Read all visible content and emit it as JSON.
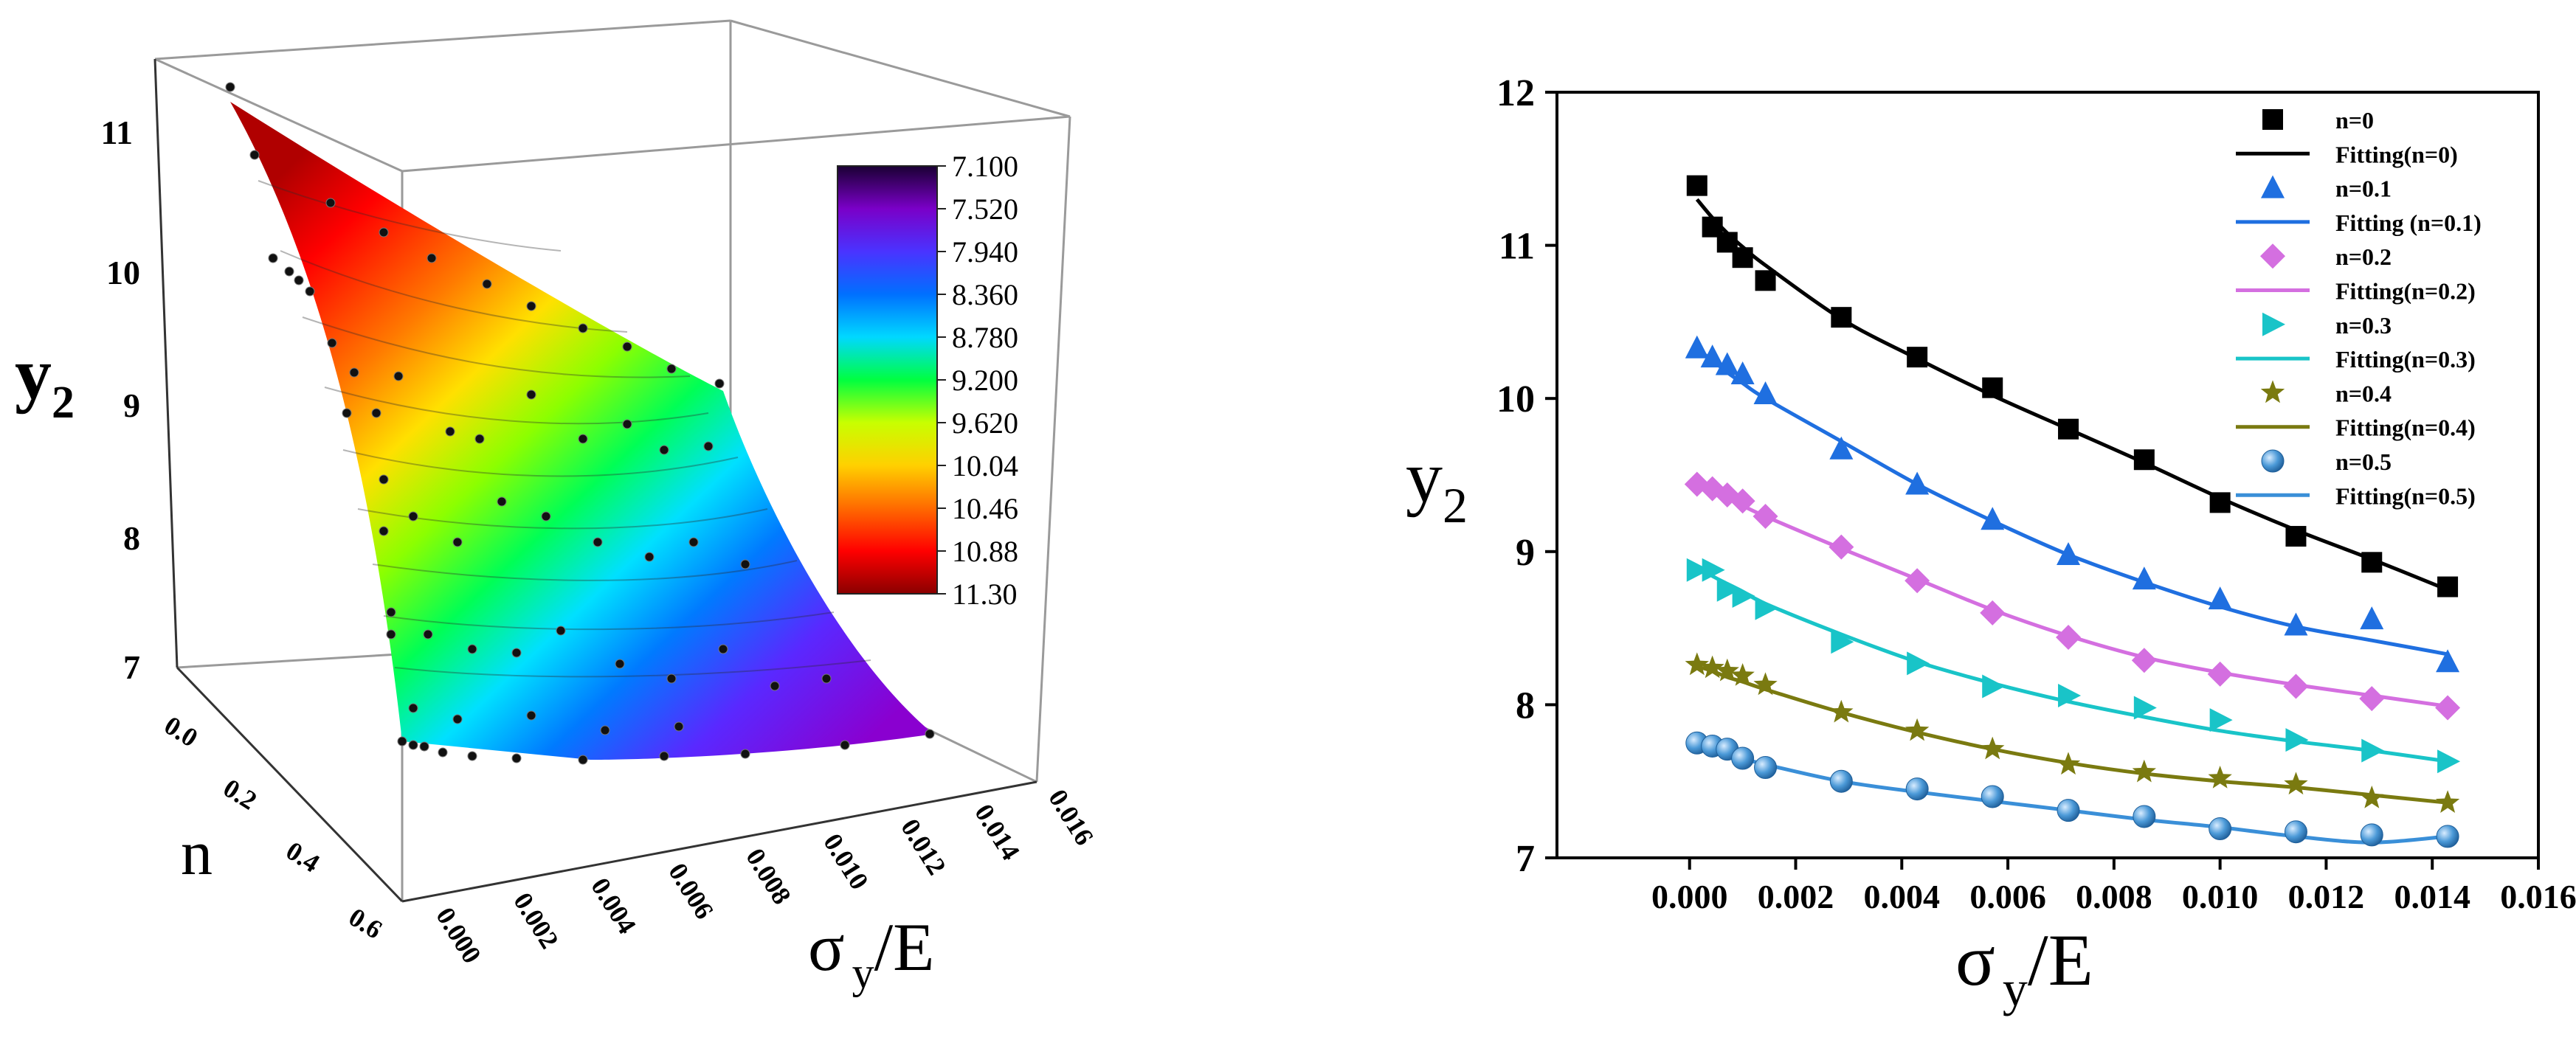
{
  "chart_data": [
    {
      "type": "surface3d",
      "zlabel": "y",
      "zlabel_sub": "2",
      "ylabel": "n",
      "xlabel_sigma": "σ",
      "xlabel_sub": "y",
      "xlabel_rest": "/E",
      "z_ticks": [
        "7",
        "8",
        "9",
        "10",
        "11"
      ],
      "n_ticks": [
        "0.0",
        "0.2",
        "0.4",
        "0.6"
      ],
      "x_ticks": [
        "0.000",
        "0.002",
        "0.004",
        "0.006",
        "0.008",
        "0.010",
        "0.012",
        "0.014",
        "0.016"
      ],
      "zlim": [
        7,
        11.5
      ],
      "nlim": [
        0,
        0.6
      ],
      "xlim": [
        0,
        0.016
      ],
      "colorbar": {
        "labels": [
          "7.100",
          "7.520",
          "7.940",
          "8.360",
          "8.780",
          "9.200",
          "9.620",
          "10.04",
          "10.46",
          "10.88",
          "11.30"
        ],
        "stops": [
          "#1a0033",
          "#7a00c8",
          "#4a33ff",
          "#0070ff",
          "#00d8ff",
          "#00ff40",
          "#c8ff00",
          "#ffd000",
          "#ff6a00",
          "#ff0000",
          "#8a0000"
        ]
      }
    },
    {
      "type": "line",
      "ylabel": "y",
      "ylabel_sub": "2",
      "xlabel_sigma": "σ",
      "xlabel_sub": "y",
      "xlabel_rest": "/E",
      "xlim": [
        -0.0025,
        0.016
      ],
      "ylim": [
        7,
        12
      ],
      "x_ticks": [
        0.0,
        0.002,
        0.004,
        0.006,
        0.008,
        0.01,
        0.012,
        0.014,
        0.016
      ],
      "x_tick_labels": [
        "0.000",
        "0.002",
        "0.004",
        "0.006",
        "0.008",
        "0.010",
        "0.012",
        "0.014",
        "0.016"
      ],
      "y_ticks": [
        7,
        8,
        9,
        10,
        11,
        12
      ],
      "y_tick_labels": [
        "7",
        "8",
        "9",
        "10",
        "11",
        "12"
      ],
      "x": [
        0.00014,
        0.00043,
        0.00071,
        0.001,
        0.00143,
        0.00286,
        0.00429,
        0.00571,
        0.00714,
        0.00857,
        0.01,
        0.01143,
        0.01286,
        0.01429
      ],
      "series": [
        {
          "name": "n=0",
          "fit_name": "Fitting(n=0)",
          "marker": "square",
          "marker_color": "#000000",
          "line_color": "#000000",
          "values": [
            11.39,
            11.12,
            11.02,
            10.92,
            10.77,
            10.53,
            10.27,
            10.07,
            9.8,
            9.6,
            9.32,
            9.1,
            8.93,
            8.77
          ],
          "fit": [
            11.3,
            11.18,
            11.08,
            10.99,
            10.87,
            10.52,
            10.26,
            10.02,
            9.8,
            9.58,
            9.35,
            9.14,
            8.95,
            8.75
          ]
        },
        {
          "name": "n=0.1",
          "fit_name": "Fitting (n=0.1)",
          "marker": "triangle-up",
          "marker_color": "#1f6fe0",
          "line_color": "#1f6fe0",
          "values": [
            10.33,
            10.27,
            10.22,
            10.16,
            10.03,
            9.67,
            9.44,
            9.21,
            8.98,
            8.82,
            8.69,
            8.52,
            8.56,
            8.28
          ],
          "fit": [
            10.32,
            10.25,
            10.17,
            10.1,
            10.0,
            9.72,
            9.44,
            9.2,
            8.98,
            8.8,
            8.64,
            8.51,
            8.42,
            8.33
          ]
        },
        {
          "name": "n=0.2",
          "fit_name": "Fitting(n=0.2)",
          "marker": "diamond",
          "marker_color": "#d46fe0",
          "line_color": "#d46fe0",
          "values": [
            9.44,
            9.41,
            9.37,
            9.33,
            9.23,
            9.03,
            8.81,
            8.6,
            8.44,
            8.29,
            8.2,
            8.12,
            8.04,
            7.98
          ],
          "fit": [
            9.45,
            9.4,
            9.35,
            9.3,
            9.23,
            9.02,
            8.82,
            8.62,
            8.45,
            8.31,
            8.21,
            8.13,
            8.06,
            7.99
          ]
        },
        {
          "name": "n=0.3",
          "fit_name": "Fitting(n=0.3)",
          "marker": "triangle-right",
          "marker_color": "#19c4c8",
          "line_color": "#19c4c8",
          "values": [
            8.88,
            8.88,
            8.75,
            8.71,
            8.63,
            8.41,
            8.27,
            8.12,
            8.06,
            7.98,
            7.9,
            7.77,
            7.7,
            7.63
          ],
          "fit": [
            8.9,
            8.84,
            8.79,
            8.74,
            8.66,
            8.46,
            8.28,
            8.14,
            8.02,
            7.92,
            7.83,
            7.76,
            7.7,
            7.63
          ]
        },
        {
          "name": "n=0.4",
          "fit_name": "Fitting(n=0.4)",
          "marker": "star",
          "marker_color": "#7a7a10",
          "line_color": "#7a7a10",
          "values": [
            8.26,
            8.24,
            8.22,
            8.19,
            8.13,
            7.95,
            7.83,
            7.71,
            7.61,
            7.56,
            7.52,
            7.48,
            7.39,
            7.36
          ],
          "fit": [
            8.25,
            8.22,
            8.18,
            8.15,
            8.1,
            7.95,
            7.82,
            7.71,
            7.62,
            7.55,
            7.5,
            7.46,
            7.41,
            7.36
          ]
        },
        {
          "name": "n=0.5",
          "fit_name": "Fitting(n=0.5)",
          "marker": "circle",
          "marker_color": "#4c9ad8",
          "line_color": "#3a8fd8",
          "values": [
            7.75,
            7.73,
            7.71,
            7.65,
            7.59,
            7.5,
            7.45,
            7.4,
            7.31,
            7.27,
            7.19,
            7.17,
            7.15,
            7.14
          ],
          "fit": [
            7.74,
            7.71,
            7.68,
            7.65,
            7.61,
            7.5,
            7.43,
            7.37,
            7.31,
            7.25,
            7.2,
            7.14,
            7.1,
            7.14
          ]
        }
      ]
    }
  ]
}
